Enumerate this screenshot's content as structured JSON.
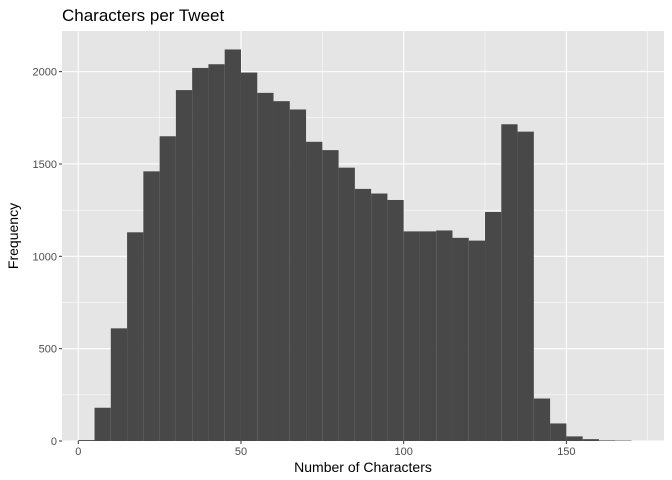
{
  "chart_data": {
    "type": "bar",
    "subtype": "histogram",
    "title": "Characters per Tweet",
    "xlabel": "Number of Characters",
    "ylabel": "Frequency",
    "xlim": [
      -5,
      180
    ],
    "ylim": [
      0,
      2220
    ],
    "x_ticks": [
      0,
      50,
      100,
      150
    ],
    "y_ticks": [
      0,
      500,
      1000,
      1500,
      2000
    ],
    "bin_width": 5,
    "bins": [
      {
        "start": 0,
        "end": 5,
        "count": 5
      },
      {
        "start": 5,
        "end": 10,
        "count": 180
      },
      {
        "start": 10,
        "end": 15,
        "count": 610
      },
      {
        "start": 15,
        "end": 20,
        "count": 1130
      },
      {
        "start": 20,
        "end": 25,
        "count": 1460
      },
      {
        "start": 25,
        "end": 30,
        "count": 1650
      },
      {
        "start": 30,
        "end": 35,
        "count": 1900
      },
      {
        "start": 35,
        "end": 40,
        "count": 2020
      },
      {
        "start": 40,
        "end": 45,
        "count": 2040
      },
      {
        "start": 45,
        "end": 50,
        "count": 2120
      },
      {
        "start": 50,
        "end": 55,
        "count": 1995
      },
      {
        "start": 55,
        "end": 60,
        "count": 1885
      },
      {
        "start": 60,
        "end": 65,
        "count": 1840
      },
      {
        "start": 65,
        "end": 70,
        "count": 1795
      },
      {
        "start": 70,
        "end": 75,
        "count": 1620
      },
      {
        "start": 75,
        "end": 80,
        "count": 1575
      },
      {
        "start": 80,
        "end": 85,
        "count": 1480
      },
      {
        "start": 85,
        "end": 90,
        "count": 1365
      },
      {
        "start": 90,
        "end": 95,
        "count": 1340
      },
      {
        "start": 95,
        "end": 100,
        "count": 1305
      },
      {
        "start": 100,
        "end": 105,
        "count": 1135
      },
      {
        "start": 105,
        "end": 110,
        "count": 1135
      },
      {
        "start": 110,
        "end": 115,
        "count": 1140
      },
      {
        "start": 115,
        "end": 120,
        "count": 1100
      },
      {
        "start": 120,
        "end": 125,
        "count": 1085
      },
      {
        "start": 125,
        "end": 130,
        "count": 1240
      },
      {
        "start": 130,
        "end": 135,
        "count": 1715
      },
      {
        "start": 135,
        "end": 140,
        "count": 1675
      },
      {
        "start": 140,
        "end": 145,
        "count": 230
      },
      {
        "start": 145,
        "end": 150,
        "count": 95
      },
      {
        "start": 150,
        "end": 155,
        "count": 25
      },
      {
        "start": 155,
        "end": 160,
        "count": 10
      },
      {
        "start": 160,
        "end": 165,
        "count": 3
      },
      {
        "start": 165,
        "end": 170,
        "count": 2
      }
    ],
    "grid": true,
    "legend": "none",
    "colors": {
      "panel_background": "#e5e5e5",
      "grid_major": "#ffffff",
      "bar_fill": "#484848",
      "tick_label": "#4d4d4d"
    }
  }
}
